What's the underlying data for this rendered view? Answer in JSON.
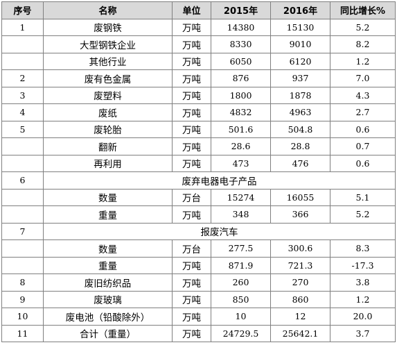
{
  "header": {
    "seq": "序号",
    "name": "名称",
    "unit": "单位",
    "y2015": "2015年",
    "y2016": "2016年",
    "growth": "同比增长%"
  },
  "rows": [
    {
      "seq": "1",
      "name": "废钢铁",
      "unit": "万吨",
      "y2015": "14380",
      "y2016": "15130",
      "growth": "5.2"
    },
    {
      "seq": "",
      "name": "大型钢铁企业",
      "unit": "万吨",
      "y2015": "8330",
      "y2016": "9010",
      "growth": "8.2"
    },
    {
      "seq": "",
      "name": "其他行业",
      "unit": "万吨",
      "y2015": "6050",
      "y2016": "6120",
      "growth": "1.2"
    },
    {
      "seq": "2",
      "name": "废有色金属",
      "unit": "万吨",
      "y2015": "876",
      "y2016": "937",
      "growth": "7.0"
    },
    {
      "seq": "3",
      "name": "废塑料",
      "unit": "万吨",
      "y2015": "1800",
      "y2016": "1878",
      "growth": "4.3"
    },
    {
      "seq": "4",
      "name": "废纸",
      "unit": "万吨",
      "y2015": "4832",
      "y2016": "4963",
      "growth": "2.7"
    },
    {
      "seq": "5",
      "name": "废轮胎",
      "unit": "万吨",
      "y2015": "501.6",
      "y2016": "504.8",
      "growth": "0.6"
    },
    {
      "seq": "",
      "name": "翻新",
      "unit": "万吨",
      "y2015": "28.6",
      "y2016": "28.8",
      "growth": "0.7"
    },
    {
      "seq": "",
      "name": "再利用",
      "unit": "万吨",
      "y2015": "473",
      "y2016": "476",
      "growth": "0.6"
    },
    {
      "seq": "6",
      "section": "废弃电器电子产品"
    },
    {
      "seq": "",
      "name": "数量",
      "unit": "万台",
      "y2015": "15274",
      "y2016": "16055",
      "growth": "5.1"
    },
    {
      "seq": "",
      "name": "重量",
      "unit": "万吨",
      "y2015": "348",
      "y2016": "366",
      "growth": "5.2"
    },
    {
      "seq": "7",
      "section": "报废汽车"
    },
    {
      "seq": "",
      "name": "数量",
      "unit": "万台",
      "y2015": "277.5",
      "y2016": "300.6",
      "growth": "8.3"
    },
    {
      "seq": "",
      "name": "重量",
      "unit": "万吨",
      "y2015": "871.9",
      "y2016": "721.3",
      "growth": "-17.3"
    },
    {
      "seq": "8",
      "name": "废旧纺织品",
      "unit": "万吨",
      "y2015": "260",
      "y2016": "270",
      "growth": "3.8"
    },
    {
      "seq": "9",
      "name": "废玻璃",
      "unit": "万吨",
      "y2015": "850",
      "y2016": "860",
      "growth": "1.2"
    },
    {
      "seq": "10",
      "name": "废电池（铅酸除外）",
      "unit": "万吨",
      "y2015": "10",
      "y2016": "12",
      "growth": "20.0"
    },
    {
      "seq": "11",
      "name": "合计（重量）",
      "unit": "万吨",
      "y2015": "24729.5",
      "y2016": "25642.1",
      "growth": "3.7"
    }
  ]
}
